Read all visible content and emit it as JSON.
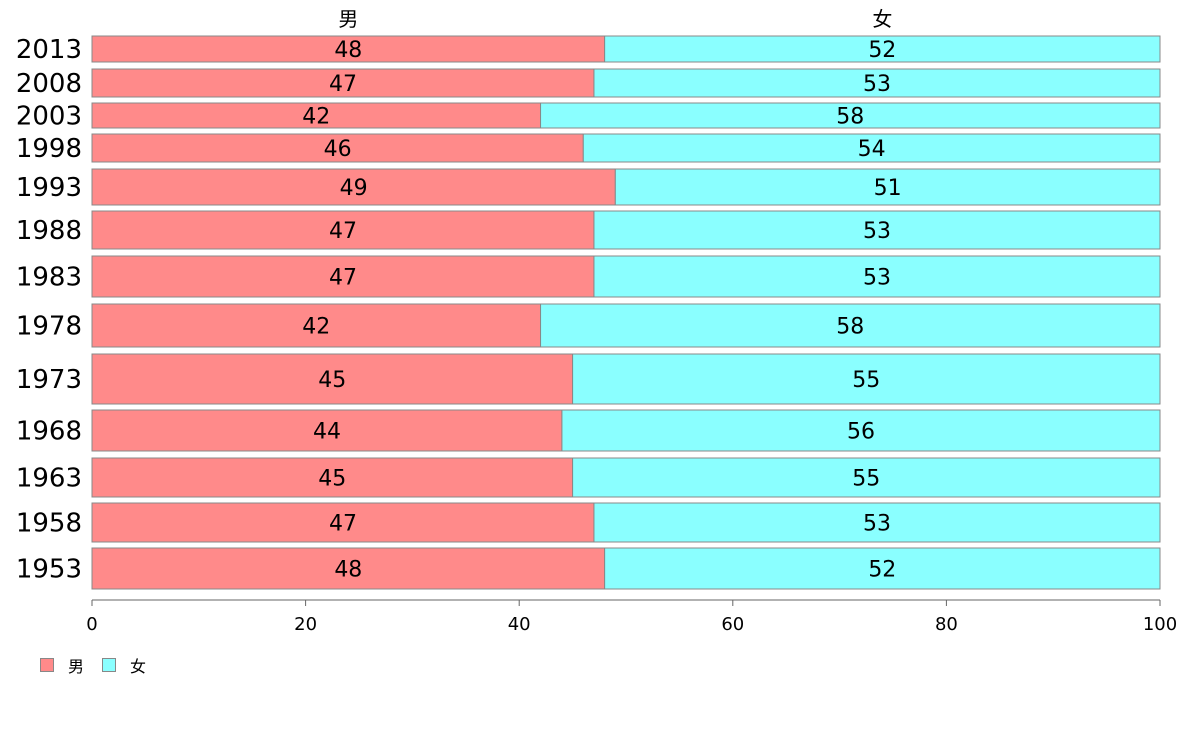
{
  "chart_data": {
    "type": "bar",
    "orientation": "horizontal",
    "stacked": true,
    "categories": [
      "2013",
      "2008",
      "2003",
      "1998",
      "1993",
      "1988",
      "1983",
      "1978",
      "1973",
      "1968",
      "1963",
      "1958",
      "1953"
    ],
    "series": [
      {
        "name": "男",
        "color": "#ff8a8a",
        "values": [
          48,
          47,
          42,
          46,
          49,
          47,
          47,
          42,
          45,
          44,
          45,
          47,
          48
        ]
      },
      {
        "name": "女",
        "color": "#8affff",
        "values": [
          52,
          53,
          58,
          54,
          51,
          53,
          53,
          58,
          55,
          56,
          55,
          53,
          52
        ]
      }
    ],
    "xlim": [
      0,
      100
    ],
    "xticks": [
      0,
      20,
      40,
      60,
      80,
      100
    ],
    "xtick_labels": [
      "0",
      "20",
      "40",
      "60",
      "80",
      "100"
    ],
    "legend_position": "bottom-left",
    "grid": false
  }
}
